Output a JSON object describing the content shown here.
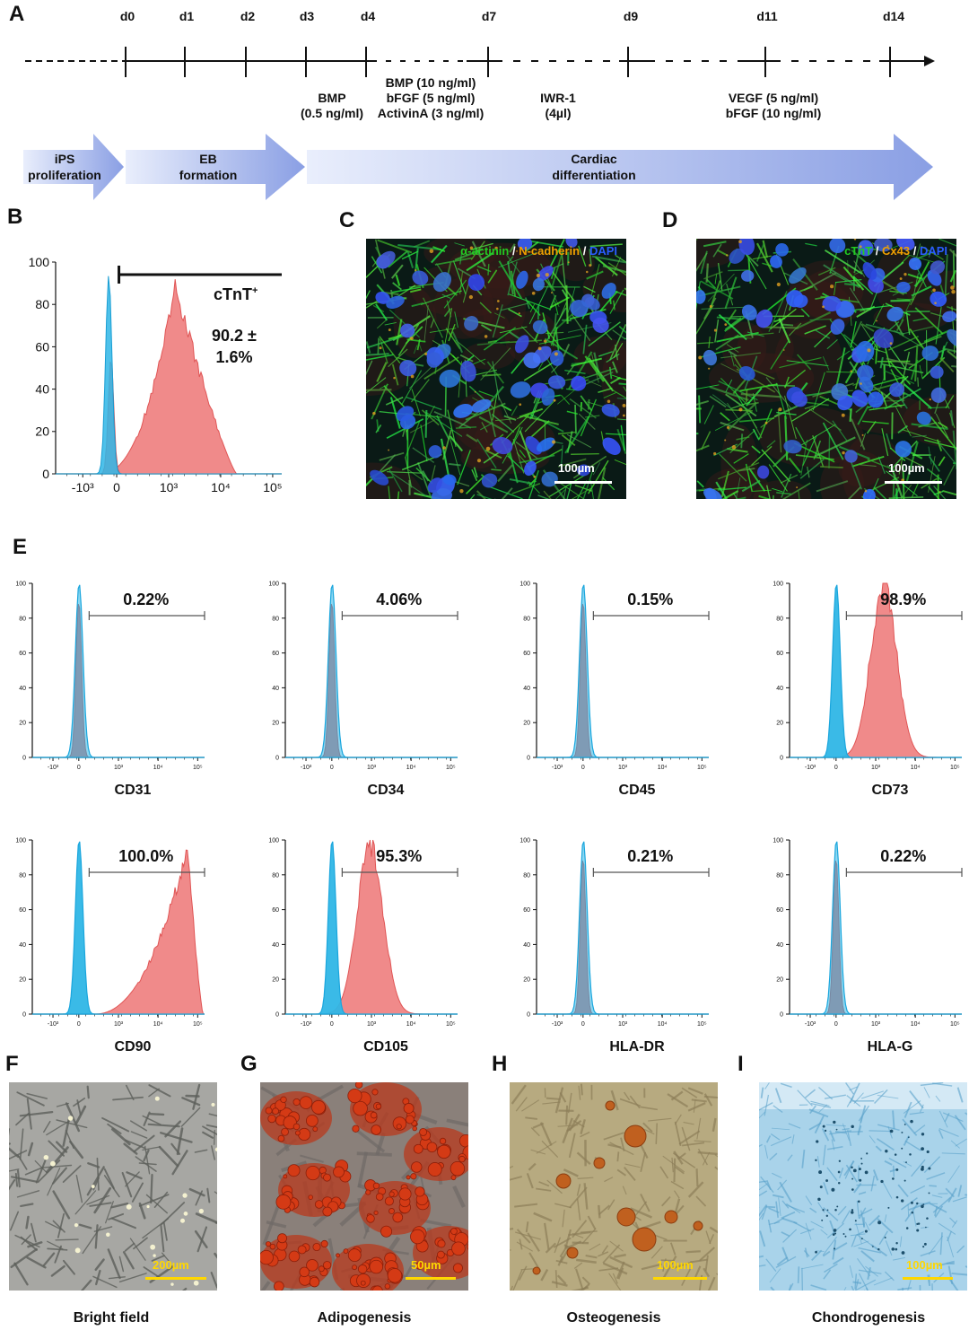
{
  "panels": {
    "A": "A",
    "B": "B",
    "C": "C",
    "D": "D",
    "E": "E",
    "F": "F",
    "G": "G",
    "H": "H",
    "I": "I"
  },
  "timeline": {
    "days": [
      "d0",
      "d1",
      "d2",
      "d3",
      "d4",
      "d7",
      "d9",
      "d11",
      "d14"
    ],
    "reagents": [
      {
        "lines": [
          "BMP",
          "(0.5 ng/ml)"
        ]
      },
      {
        "lines": [
          "BMP (10 ng/ml)",
          "bFGF (5 ng/ml)",
          "ActivinA (3 ng/ml)"
        ]
      },
      {
        "lines": [
          "IWR-1",
          "(4µl)"
        ]
      },
      {
        "lines": [
          "VEGF (5 ng/ml)",
          "bFGF (10 ng/ml)"
        ]
      }
    ],
    "stages": [
      {
        "lines": [
          "iPS",
          "proliferation"
        ]
      },
      {
        "lines": [
          "EB",
          "formation"
        ]
      },
      {
        "lines": [
          "Cardiac",
          "differentiation"
        ]
      }
    ]
  },
  "panelB": {
    "chart_data": {
      "type": "area",
      "marker": "cTnT",
      "marker_sup": "+",
      "value_text": "90.2 ±",
      "value_text2": "1.6%",
      "yticks": [
        0,
        20,
        40,
        60,
        80,
        100
      ],
      "xticks": [
        "-10³",
        "0",
        "10³",
        "10⁴",
        "10⁵"
      ],
      "ylim": [
        0,
        100
      ]
    }
  },
  "panelC": {
    "labels": [
      {
        "text": "α-actinin",
        "color": "#22cc22"
      },
      {
        "text": " / ",
        "color": "#ffffff"
      },
      {
        "text": "N-cadherin",
        "color": "#f0a000"
      },
      {
        "text": " / ",
        "color": "#ffffff"
      },
      {
        "text": "DAPI",
        "color": "#2a5cff"
      }
    ],
    "scale": "100µm"
  },
  "panelD": {
    "labels": [
      {
        "text": "cTnT",
        "color": "#22cc22"
      },
      {
        "text": " / ",
        "color": "#ffffff"
      },
      {
        "text": "Cx43",
        "color": "#f0a000"
      },
      {
        "text": " / ",
        "color": "#ffffff"
      },
      {
        "text": "DAPI",
        "color": "#2a5cff"
      }
    ],
    "scale": "100µm"
  },
  "panelE": {
    "chart_data": [
      {
        "type": "area",
        "marker": "CD31",
        "percent": "0.22%",
        "positive": false,
        "peak_log": 0
      },
      {
        "type": "area",
        "marker": "CD34",
        "percent": "4.06%",
        "positive": false,
        "peak_log": 0
      },
      {
        "type": "area",
        "marker": "CD45",
        "percent": "0.15%",
        "positive": false,
        "peak_log": 0
      },
      {
        "type": "area",
        "marker": "CD73",
        "percent": "98.9%",
        "positive": true,
        "peak_log": 3.2
      },
      {
        "type": "area",
        "marker": "CD90",
        "percent": "100.0%",
        "positive": true,
        "peak_log": 4.6
      },
      {
        "type": "area",
        "marker": "CD105",
        "percent": "95.3%",
        "positive": true,
        "peak_log": 2.9
      },
      {
        "type": "area",
        "marker": "HLA-DR",
        "percent": "0.21%",
        "positive": false,
        "peak_log": 0
      },
      {
        "type": "area",
        "marker": "HLA-G",
        "percent": "0.22%",
        "positive": false,
        "peak_log": 0
      }
    ],
    "yticks": [
      0,
      20,
      40,
      60,
      80,
      100
    ],
    "xticks": [
      "-10³",
      "0",
      "10³",
      "10⁴",
      "10⁵"
    ]
  },
  "bottom": [
    {
      "title": "Bright field",
      "scale": "200µm"
    },
    {
      "title": "Adipogenesis",
      "scale": "50µm"
    },
    {
      "title": "Osteogenesis",
      "scale": "100µm"
    },
    {
      "title": "Chondrogenesis",
      "scale": "100µm"
    }
  ],
  "colors": {
    "control": "#2fb6e6",
    "sample": "#f08a8a",
    "arrow": "#8fa3e6",
    "scalebar_white": "#ffffff",
    "scalebar_yellow": "#ffd700"
  }
}
